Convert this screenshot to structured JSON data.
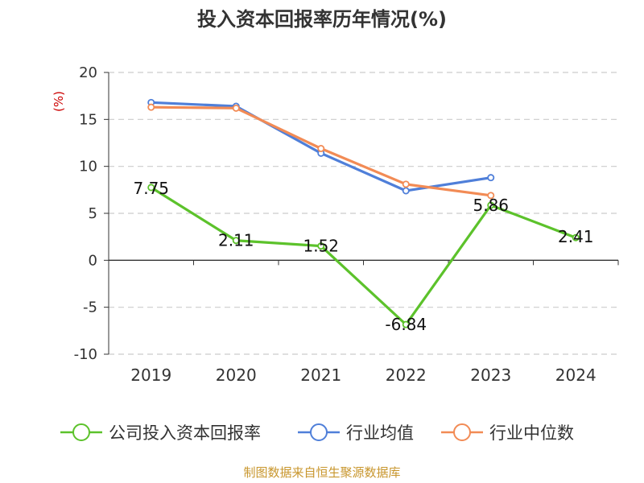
{
  "chart_data": {
    "type": "line",
    "title": "投入资本回报率历年情况(%)",
    "ylabel": "(%)",
    "ylim": [
      -10,
      20
    ],
    "yticks": [
      "20",
      "15",
      "10",
      "5",
      "0",
      "-5",
      "-10"
    ],
    "categories": [
      "2019",
      "2020",
      "2021",
      "2022",
      "2023",
      "2024"
    ],
    "grid": true,
    "legend_position": "bottom",
    "series": [
      {
        "name": "公司投入资本回报率",
        "color": "#5cc22b",
        "values": [
          7.75,
          2.11,
          1.52,
          -6.84,
          5.86,
          2.41
        ],
        "labels": [
          "7.75",
          "2.11",
          "1.52",
          "-6.84",
          "5.86",
          "2.41"
        ]
      },
      {
        "name": "行业均值",
        "color": "#4f7fd9",
        "values": [
          16.8,
          16.4,
          11.4,
          7.4,
          8.8,
          null
        ]
      },
      {
        "name": "行业中位数",
        "color": "#f28b55",
        "values": [
          16.3,
          16.2,
          11.9,
          8.1,
          6.9,
          null
        ]
      }
    ]
  },
  "source": "制图数据来自恒生聚源数据库"
}
